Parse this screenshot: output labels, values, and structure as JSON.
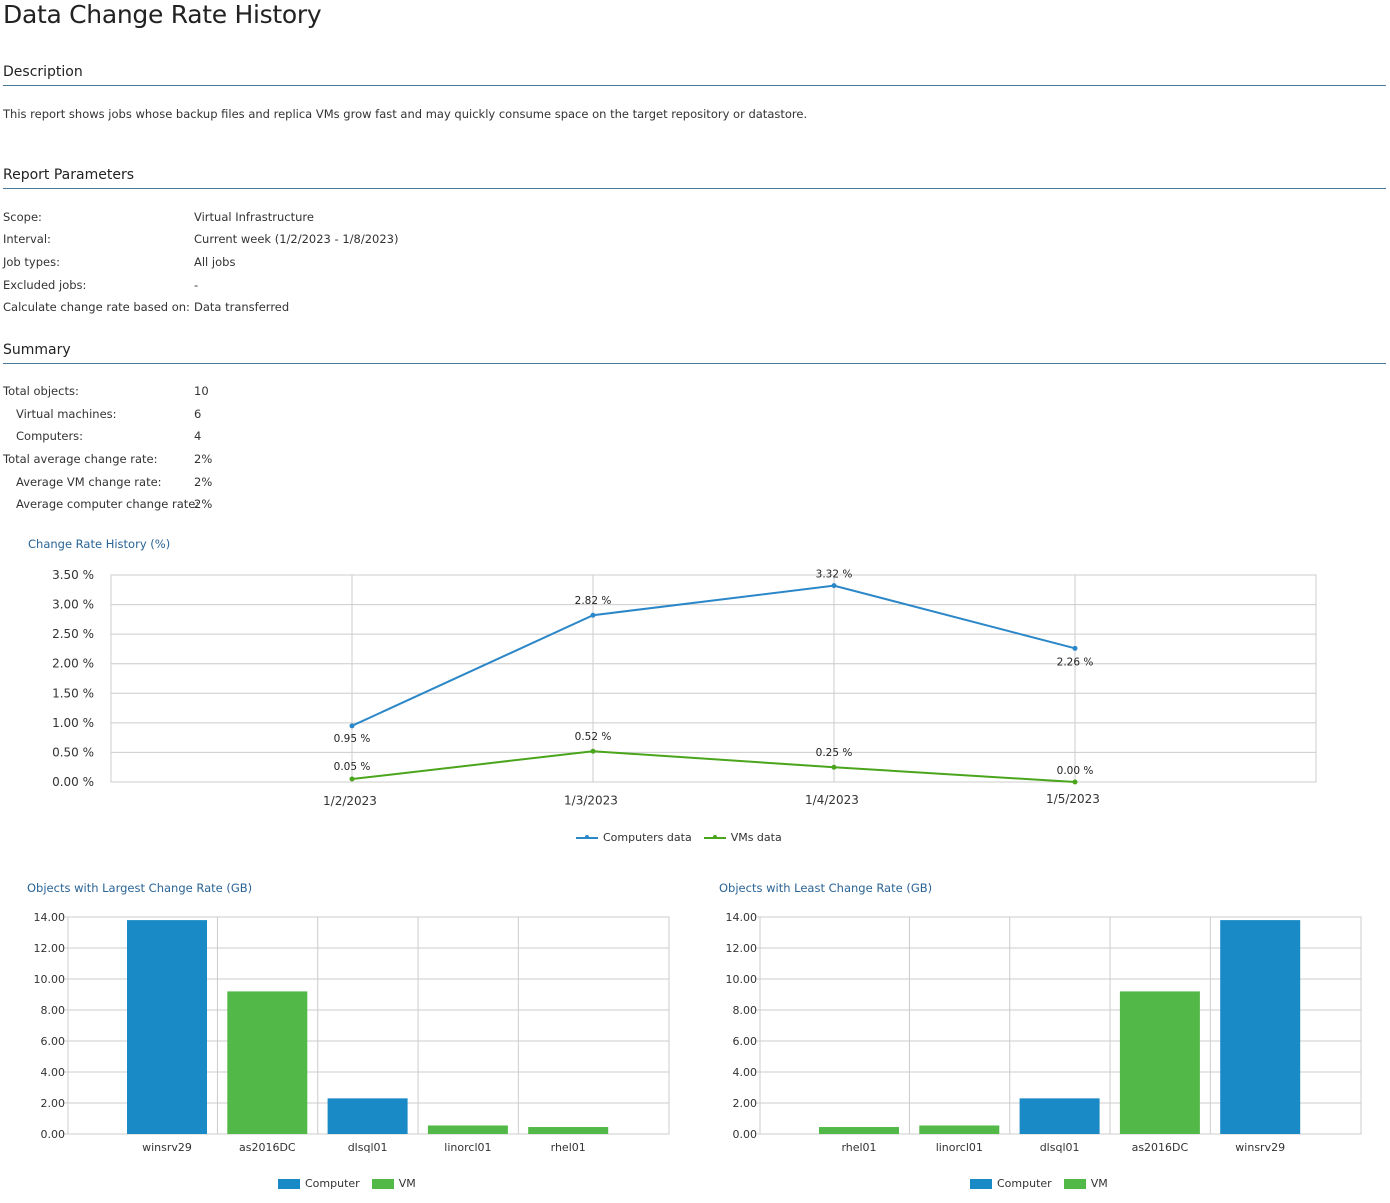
{
  "page": {
    "title": "Data Change Rate History"
  },
  "description": {
    "heading": "Description",
    "text": "This report shows jobs whose backup files and replica VMs grow fast and may quickly consume space on the target repository or datastore."
  },
  "report_parameters": {
    "heading": "Report Parameters",
    "rows": [
      {
        "label": "Scope:",
        "value": "Virtual Infrastructure"
      },
      {
        "label": "Interval:",
        "value": "Current week (1/2/2023 - 1/8/2023)"
      },
      {
        "label": "Job types:",
        "value": "All jobs"
      },
      {
        "label": "Excluded jobs:",
        "value": "-"
      },
      {
        "label": "Calculate change rate based on:",
        "value": "Data transferred"
      }
    ]
  },
  "summary": {
    "heading": "Summary",
    "rows": [
      {
        "label": "Total objects:",
        "value": "10",
        "indent": false
      },
      {
        "label": "Virtual machines:",
        "value": "6",
        "indent": true
      },
      {
        "label": "Computers:",
        "value": "4",
        "indent": true
      },
      {
        "label": "Total average change rate:",
        "value": "2%",
        "indent": false
      },
      {
        "label": "Average VM change rate:",
        "value": "2%",
        "indent": true
      },
      {
        "label": "Average computer change rate:",
        "value": "2%",
        "indent": true
      }
    ]
  },
  "colors": {
    "computers_line": "#2b87c8",
    "vms_line": "#4aa51c",
    "computer_bar": "#1a8ac6",
    "vm_bar": "#52b848",
    "grid": "#cccccc",
    "chart_title": "#2a6496"
  },
  "chart_data": [
    {
      "type": "line",
      "title": "Change Rate History (%)",
      "categories": [
        "1/2/2023",
        "1/3/2023",
        "1/4/2023",
        "1/5/2023"
      ],
      "ylim": [
        0,
        3.5
      ],
      "yticks": [
        "0.00 %",
        "0.50 %",
        "1.00 %",
        "1.50 %",
        "2.00 %",
        "2.50 %",
        "3.00 %",
        "3.50 %"
      ],
      "grid": true,
      "legend": "bottom-center",
      "series": [
        {
          "name": "Computers data",
          "values": [
            0.95,
            2.82,
            3.32,
            2.26
          ],
          "labels": [
            "0.95 %",
            "2.82 %",
            "3.32 %",
            "2.26 %"
          ]
        },
        {
          "name": "VMs data",
          "values": [
            0.05,
            0.52,
            0.25,
            0.0
          ],
          "labels": [
            "0.05 %",
            "0.52 %",
            "0.25 %",
            "0.00 %"
          ]
        }
      ]
    },
    {
      "type": "bar",
      "title": "Objects with Largest Change Rate (GB)",
      "categories": [
        "winsrv29",
        "as2016DC",
        "dlsql01",
        "linorcl01",
        "rhel01"
      ],
      "values": [
        13.8,
        9.2,
        2.3,
        0.55,
        0.45
      ],
      "kinds": [
        "Computer",
        "VM",
        "Computer",
        "VM",
        "VM"
      ],
      "ylim": [
        0,
        14
      ],
      "yticks": [
        "0.00",
        "2.00",
        "4.00",
        "6.00",
        "8.00",
        "10.00",
        "12.00",
        "14.00"
      ],
      "grid": true,
      "legend": "bottom-center",
      "series": [
        {
          "name": "Computer"
        },
        {
          "name": "VM"
        }
      ]
    },
    {
      "type": "bar",
      "title": "Objects with Least Change Rate (GB)",
      "categories": [
        "rhel01",
        "linorcl01",
        "dlsql01",
        "as2016DC",
        "winsrv29"
      ],
      "values": [
        0.45,
        0.55,
        2.3,
        9.2,
        13.8
      ],
      "kinds": [
        "VM",
        "VM",
        "Computer",
        "VM",
        "Computer"
      ],
      "ylim": [
        0,
        14
      ],
      "yticks": [
        "0.00",
        "2.00",
        "4.00",
        "6.00",
        "8.00",
        "10.00",
        "12.00",
        "14.00"
      ],
      "grid": true,
      "legend": "bottom-center",
      "series": [
        {
          "name": "Computer"
        },
        {
          "name": "VM"
        }
      ]
    }
  ]
}
